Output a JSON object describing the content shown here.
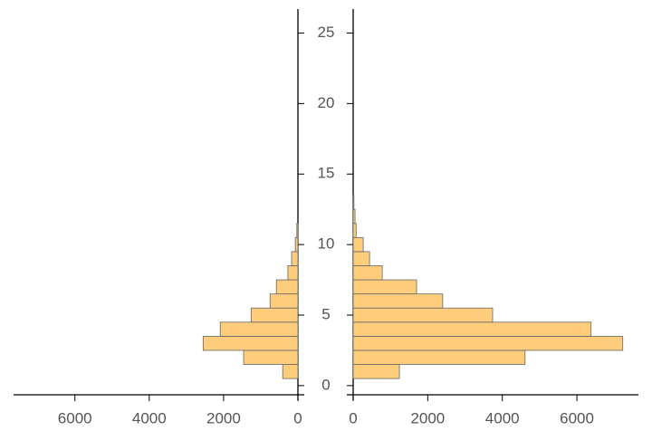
{
  "chart_data": [
    {
      "type": "histogram",
      "x_reversed": true,
      "color": "#fecd7c",
      "bins": [
        0.5,
        1.5,
        2.5,
        3.5,
        4.5,
        5.5,
        6.5,
        7.5,
        8.5,
        9.5,
        10.5,
        11.5
      ],
      "values": [
        410,
        1460,
        2550,
        2090,
        1260,
        750,
        580,
        270,
        170,
        70,
        30
      ],
      "xlim": [
        0,
        7650
      ],
      "xticks": [
        0,
        2000,
        4000,
        6000
      ],
      "ylim": [
        -0.65,
        26.7
      ],
      "yticks": [
        0,
        5,
        10,
        15,
        20,
        25
      ]
    },
    {
      "type": "histogram",
      "x_reversed": false,
      "color": "#fecd7c",
      "bins": [
        0.5,
        1.5,
        2.5,
        3.5,
        4.5,
        5.5,
        6.5,
        7.5,
        8.5,
        9.5,
        10.5,
        11.5,
        12.5,
        13.5
      ],
      "values": [
        1240,
        4610,
        7230,
        6380,
        3740,
        2400,
        1700,
        780,
        440,
        270,
        80,
        50,
        20
      ],
      "xlim": [
        0,
        7650
      ],
      "xticks": [
        0,
        2000,
        4000,
        6000
      ],
      "ylim": [
        -0.65,
        26.7
      ],
      "yticks": [
        0,
        5,
        10,
        15,
        20,
        25
      ]
    }
  ]
}
